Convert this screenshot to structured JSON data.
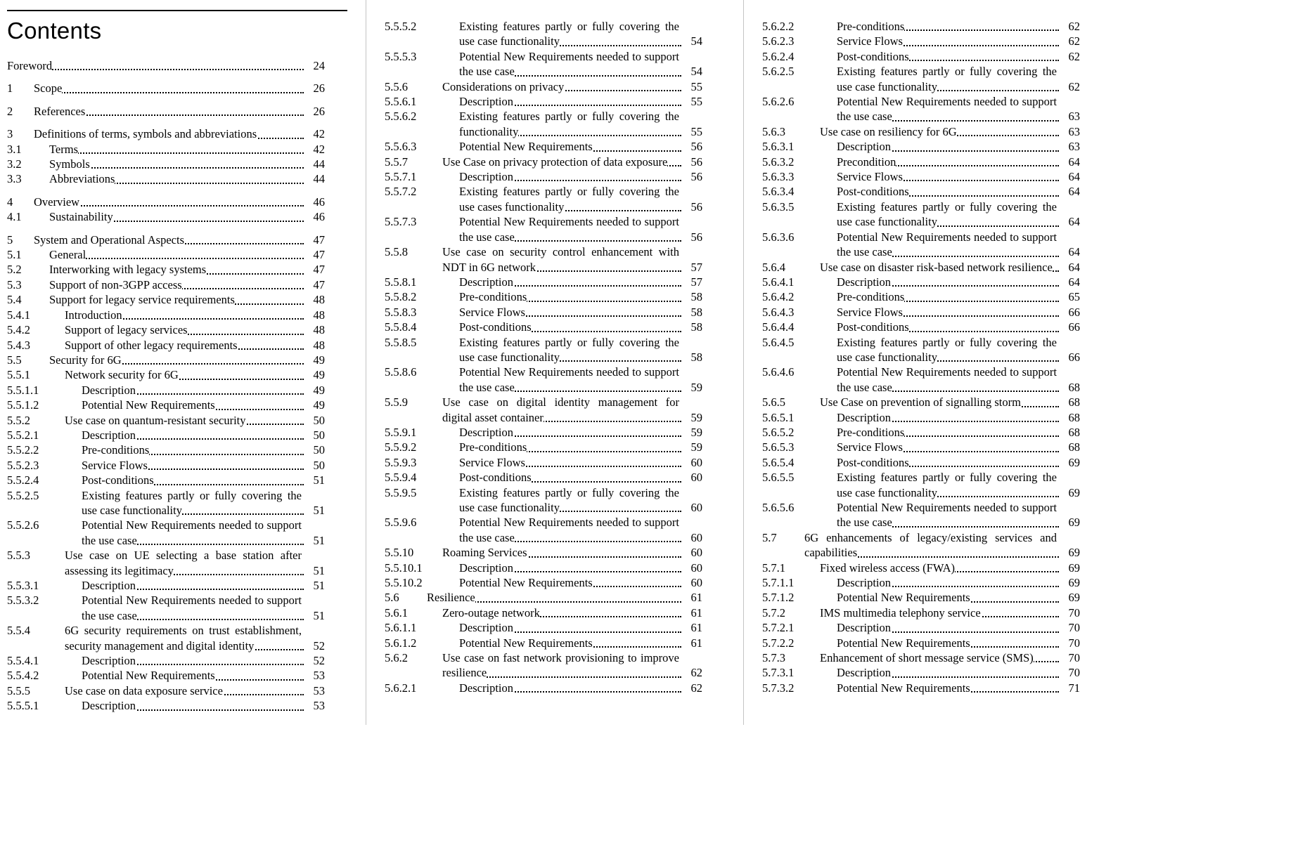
{
  "page": {
    "heading": "Contents",
    "colors": {
      "text": "#000000",
      "divider": "#c4c4c4",
      "background": "#ffffff"
    },
    "columns": [
      {
        "entries": [
          {
            "num": "",
            "title": "Foreword",
            "page": "24"
          },
          {
            "num": "1",
            "title": "Scope",
            "page": "26"
          },
          {
            "num": "2",
            "title": "References",
            "page": "26"
          },
          {
            "num": "3",
            "title": "Definitions of terms, symbols and abbreviations",
            "page": "42"
          },
          {
            "num": "3.1",
            "title": "Terms",
            "page": "42"
          },
          {
            "num": "3.2",
            "title": "Symbols",
            "page": "44"
          },
          {
            "num": "3.3",
            "title": "Abbreviations",
            "page": "44"
          },
          {
            "num": "4",
            "title": "Overview",
            "page": "46"
          },
          {
            "num": "4.1",
            "title": "Sustainability",
            "page": "46"
          },
          {
            "num": "5",
            "title": "System and Operational Aspects",
            "page": "47"
          },
          {
            "num": "5.1",
            "title": "General",
            "page": "47"
          },
          {
            "num": "5.2",
            "title": "Interworking with legacy systems",
            "page": "47"
          },
          {
            "num": "5.3",
            "title": "Support of non-3GPP access",
            "page": "47"
          },
          {
            "num": "5.4",
            "title": "Support for legacy service requirements",
            "page": "48"
          },
          {
            "num": "5.4.1",
            "title": "Introduction",
            "page": "48"
          },
          {
            "num": "5.4.2",
            "title": "Support of legacy services",
            "page": "48"
          },
          {
            "num": "5.4.3",
            "title": "Support of other legacy requirements",
            "page": "48"
          },
          {
            "num": "5.5",
            "title": "Security for 6G",
            "page": "49"
          },
          {
            "num": "5.5.1",
            "title": "Network security for 6G",
            "page": "49"
          },
          {
            "num": "5.5.1.1",
            "title": "Description",
            "page": "49"
          },
          {
            "num": "5.5.1.2",
            "title": "Potential New Requirements",
            "page": "49"
          },
          {
            "num": "5.5.2",
            "title": "Use case on quantum-resistant security",
            "page": "50"
          },
          {
            "num": "5.5.2.1",
            "title": "Description",
            "page": "50"
          },
          {
            "num": "5.5.2.2",
            "title": "Pre-conditions",
            "page": "50"
          },
          {
            "num": "5.5.2.3",
            "title": "Service Flows",
            "page": "50"
          },
          {
            "num": "5.5.2.4",
            "title": "Post-conditions",
            "page": "51"
          },
          {
            "num": "5.5.2.5",
            "title": "Existing features partly or fully covering the use case functionality",
            "page": "51"
          },
          {
            "num": "5.5.2.6",
            "title": "Potential New Requirements needed to support the use case",
            "page": "51"
          },
          {
            "num": "5.5.3",
            "title": "Use case on UE selecting a base station after assessing its legitimacy",
            "page": "51"
          },
          {
            "num": "5.5.3.1",
            "title": "Description",
            "page": "51"
          },
          {
            "num": "5.5.3.2",
            "title": "Potential New Requirements needed to support the use case",
            "page": "51"
          },
          {
            "num": "5.5.4",
            "title": "6G security requirements on trust establishment, security management and digital identity",
            "page": "52"
          },
          {
            "num": "5.5.4.1",
            "title": "Description",
            "page": "52"
          },
          {
            "num": "5.5.4.2",
            "title": "Potential New Requirements",
            "page": "53"
          },
          {
            "num": "5.5.5",
            "title": "Use case on data exposure service",
            "page": "53"
          },
          {
            "num": "5.5.5.1",
            "title": "Description",
            "page": "53"
          }
        ]
      },
      {
        "entries": [
          {
            "num": "5.5.5.2",
            "title": "Existing features partly or fully covering the use case functionality",
            "page": "54"
          },
          {
            "num": "5.5.5.3",
            "title": "Potential New Requirements needed to support the use case",
            "page": "54"
          },
          {
            "num": "5.5.6",
            "title": "Considerations on privacy",
            "page": "55"
          },
          {
            "num": "5.5.6.1",
            "title": "Description",
            "page": "55"
          },
          {
            "num": "5.5.6.2",
            "title": "Existing features partly or fully covering the functionality",
            "page": "55"
          },
          {
            "num": "5.5.6.3",
            "title": "Potential New Requirements",
            "page": "56"
          },
          {
            "num": "5.5.7",
            "title": "Use Case on privacy protection of data exposure",
            "page": "56"
          },
          {
            "num": "5.5.7.1",
            "title": "Description",
            "page": "56"
          },
          {
            "num": "5.5.7.2",
            "title": "Existing features partly or fully covering the use cases functionality",
            "page": "56"
          },
          {
            "num": "5.5.7.3",
            "title": "Potential New Requirements needed to support the use case",
            "page": "56"
          },
          {
            "num": "5.5.8",
            "title": "Use case on security control enhancement with NDT in 6G network",
            "page": "57"
          },
          {
            "num": "5.5.8.1",
            "title": "Description",
            "page": "57"
          },
          {
            "num": "5.5.8.2",
            "title": "Pre-conditions",
            "page": "58"
          },
          {
            "num": "5.5.8.3",
            "title": "Service Flows",
            "page": "58"
          },
          {
            "num": "5.5.8.4",
            "title": "Post-conditions",
            "page": "58"
          },
          {
            "num": "5.5.8.5",
            "title": "Existing features partly or fully covering the use case functionality",
            "page": "58"
          },
          {
            "num": "5.5.8.6",
            "title": "Potential New Requirements needed to support the use case",
            "page": "59"
          },
          {
            "num": "5.5.9",
            "title": "Use case on digital identity management for digital asset container",
            "page": "59"
          },
          {
            "num": "5.5.9.1",
            "title": "Description",
            "page": "59"
          },
          {
            "num": "5.5.9.2",
            "title": "Pre-conditions",
            "page": "59"
          },
          {
            "num": "5.5.9.3",
            "title": "Service Flows",
            "page": "60"
          },
          {
            "num": "5.5.9.4",
            "title": "Post-conditions",
            "page": "60"
          },
          {
            "num": "5.5.9.5",
            "title": "Existing features partly or fully covering the use case functionality",
            "page": "60"
          },
          {
            "num": "5.5.9.6",
            "title": "Potential New Requirements needed to support the use case",
            "page": "60"
          },
          {
            "num": "5.5.10",
            "title": "Roaming Services",
            "page": "60"
          },
          {
            "num": "5.5.10.1",
            "title": "Description",
            "page": "60"
          },
          {
            "num": "5.5.10.2",
            "title": "Potential New Requirements",
            "page": "60"
          },
          {
            "num": "5.6",
            "title": "Resilience",
            "page": "61"
          },
          {
            "num": "5.6.1",
            "title": "Zero-outage network",
            "page": "61"
          },
          {
            "num": "5.6.1.1",
            "title": "Description",
            "page": "61"
          },
          {
            "num": "5.6.1.2",
            "title": "Potential New Requirements",
            "page": "61"
          },
          {
            "num": "5.6.2",
            "title": "Use case on fast network provisioning to improve resilience",
            "page": "62"
          },
          {
            "num": "5.6.2.1",
            "title": "Description",
            "page": "62"
          }
        ]
      },
      {
        "entries": [
          {
            "num": "5.6.2.2",
            "title": "Pre-conditions",
            "page": "62"
          },
          {
            "num": "5.6.2.3",
            "title": "Service Flows",
            "page": "62"
          },
          {
            "num": "5.6.2.4",
            "title": "Post-conditions",
            "page": "62"
          },
          {
            "num": "5.6.2.5",
            "title": "Existing features partly or fully covering the use case functionality",
            "page": "62"
          },
          {
            "num": "5.6.2.6",
            "title": "Potential New Requirements needed to support the use case",
            "page": "63"
          },
          {
            "num": "5.6.3",
            "title": "Use case on resiliency for 6G",
            "page": "63"
          },
          {
            "num": "5.6.3.1",
            "title": "Description",
            "page": "63"
          },
          {
            "num": "5.6.3.2",
            "title": "Precondition",
            "page": "64"
          },
          {
            "num": "5.6.3.3",
            "title": "Service Flows",
            "page": "64"
          },
          {
            "num": "5.6.3.4",
            "title": "Post-conditions",
            "page": "64"
          },
          {
            "num": "5.6.3.5",
            "title": "Existing features partly or fully covering the use case functionality",
            "page": "64"
          },
          {
            "num": "5.6.3.6",
            "title": "Potential New Requirements needed to support the use case",
            "page": "64"
          },
          {
            "num": "5.6.4",
            "title": "Use case on disaster risk-based network resilience",
            "page": "64"
          },
          {
            "num": "5.6.4.1",
            "title": "Description",
            "page": "64"
          },
          {
            "num": "5.6.4.2",
            "title": "Pre-conditions",
            "page": "65"
          },
          {
            "num": "5.6.4.3",
            "title": "Service Flows",
            "page": "66"
          },
          {
            "num": "5.6.4.4",
            "title": "Post-conditions",
            "page": "66"
          },
          {
            "num": "5.6.4.5",
            "title": "Existing features partly or fully covering the use case functionality",
            "page": "66"
          },
          {
            "num": "5.6.4.6",
            "title": "Potential New Requirements needed to support the use case",
            "page": "68"
          },
          {
            "num": "5.6.5",
            "title": "Use Case on prevention of signalling storm",
            "page": "68"
          },
          {
            "num": "5.6.5.1",
            "title": "Description",
            "page": "68"
          },
          {
            "num": "5.6.5.2",
            "title": "Pre-conditions",
            "page": "68"
          },
          {
            "num": "5.6.5.3",
            "title": "Service Flows",
            "page": "68"
          },
          {
            "num": "5.6.5.4",
            "title": "Post-conditions",
            "page": "69"
          },
          {
            "num": "5.6.5.5",
            "title": "Existing features partly or fully covering the use case functionality",
            "page": "69"
          },
          {
            "num": "5.6.5.6",
            "title": "Potential New Requirements needed to support the use case",
            "page": "69"
          },
          {
            "num": "5.7",
            "title": "6G enhancements of legacy/existing services and capabilities",
            "page": "69"
          },
          {
            "num": "5.7.1",
            "title": "Fixed wireless access (FWA)",
            "page": "69"
          },
          {
            "num": "5.7.1.1",
            "title": "Description",
            "page": "69"
          },
          {
            "num": "5.7.1.2",
            "title": "Potential New Requirements",
            "page": "69"
          },
          {
            "num": "5.7.2",
            "title": "IMS multimedia telephony service",
            "page": "70"
          },
          {
            "num": "5.7.2.1",
            "title": "Description",
            "page": "70"
          },
          {
            "num": "5.7.2.2",
            "title": "Potential New Requirements",
            "page": "70"
          },
          {
            "num": "5.7.3",
            "title": "Enhancement of short message service (SMS)",
            "page": "70"
          },
          {
            "num": "5.7.3.1",
            "title": "Description",
            "page": "70"
          },
          {
            "num": "5.7.3.2",
            "title": "Potential New Requirements",
            "page": "71"
          }
        ]
      }
    ]
  }
}
